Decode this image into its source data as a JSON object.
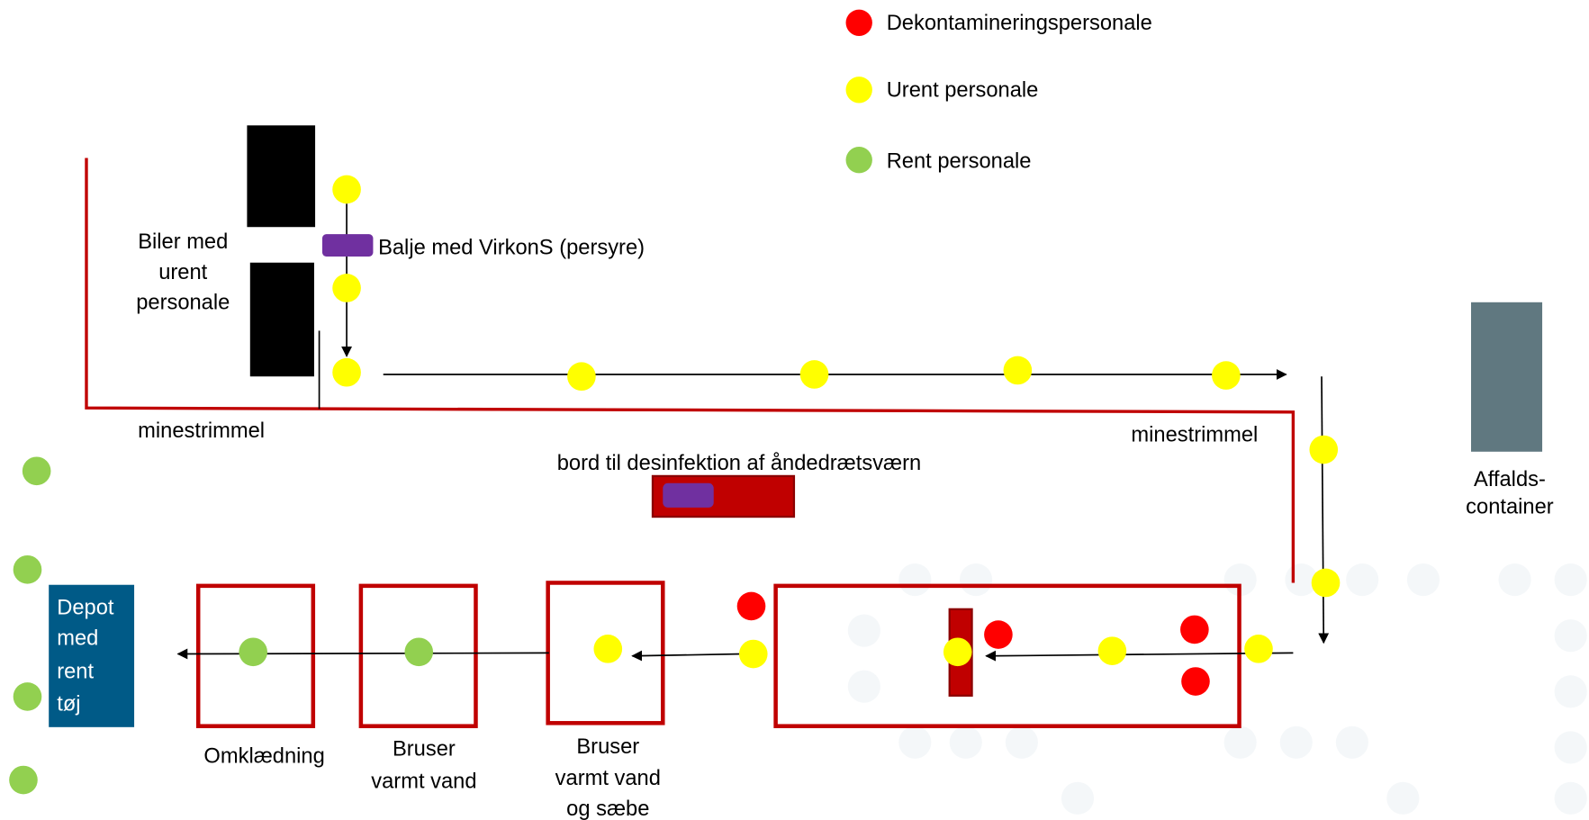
{
  "legend": [
    {
      "label": "Dekontamineringspersonale"
    },
    {
      "label": "Urent personale"
    },
    {
      "label": "Rent personale"
    }
  ],
  "cars": {
    "lines": [
      "Biler med",
      "urent",
      "personale"
    ]
  },
  "tub": {
    "label": "Balje med VirkonS (persyre)"
  },
  "mine_strip": {
    "left": "minestrimmel",
    "right": "minestrimmel"
  },
  "table": {
    "label": "bord til desinfektion af åndedrætsværn"
  },
  "container": {
    "lines": [
      "Affalds-",
      "container"
    ]
  },
  "depot": {
    "lines": [
      "Depot",
      "med",
      "rent",
      "tøj"
    ]
  },
  "stations": [
    {
      "lines": [
        "Omklædning"
      ]
    },
    {
      "lines": [
        "Bruser",
        "varmt vand"
      ]
    },
    {
      "lines": [
        "Bruser",
        "varmt vand",
        "og sæbe"
      ]
    }
  ]
}
